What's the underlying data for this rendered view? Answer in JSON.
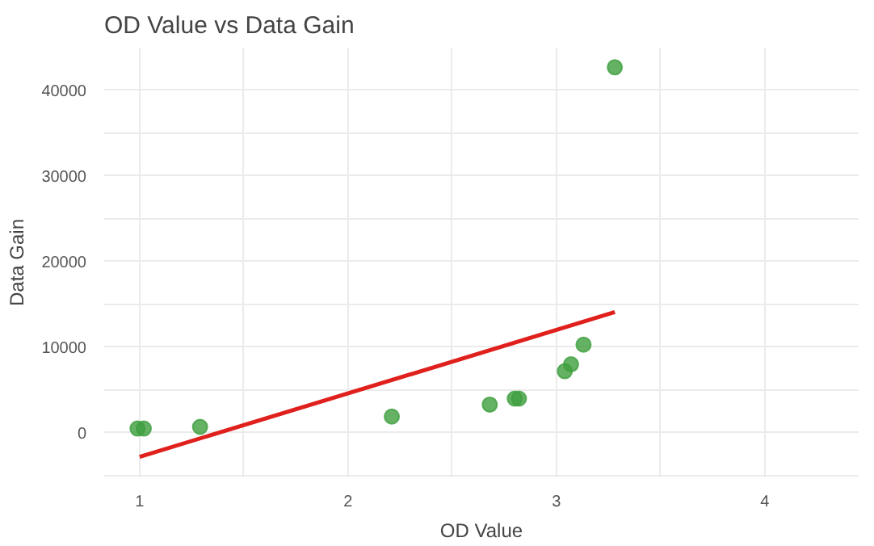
{
  "chart_data": {
    "type": "scatter",
    "title": "OD Value vs Data Gain",
    "xlabel": "OD Value",
    "ylabel": "Data Gain",
    "xlim": [
      0.83,
      4.45
    ],
    "ylim": [
      -5200,
      45000
    ],
    "xticks": [
      1,
      {
        "value": 1.5,
        "label": null
      },
      2,
      {
        "value": 2.5,
        "label": null
      },
      3,
      {
        "value": 3.5,
        "label": null
      },
      4
    ],
    "yticks": [
      {
        "value": -5000,
        "label": null
      },
      0,
      {
        "value": 5000,
        "label": null
      },
      10000,
      {
        "value": 15000,
        "label": null
      },
      20000,
      {
        "value": 25000,
        "label": null
      },
      30000,
      {
        "value": 35000,
        "label": null
      },
      40000
    ],
    "grid": true,
    "series": [
      {
        "marker": "circle",
        "color": "#3f9f3f",
        "x": [
          0.99,
          1.02,
          1.29,
          2.21,
          2.68,
          2.8,
          2.82,
          3.04,
          3.07,
          3.13,
          3.28
        ],
        "values": [
          500,
          500,
          700,
          1900,
          3300,
          4000,
          4000,
          7200,
          8000,
          10300,
          42700
        ]
      },
      {
        "type": "line",
        "color": "#e0201c",
        "x": [
          1,
          3.28
        ],
        "values": [
          -2800,
          14100
        ]
      }
    ]
  }
}
